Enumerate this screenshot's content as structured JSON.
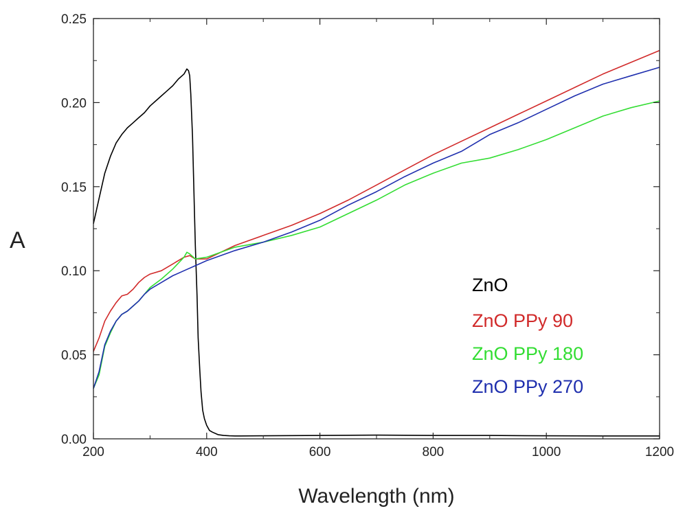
{
  "chart_data": {
    "type": "line",
    "xlabel": "Wavelength (nm)",
    "ylabel": "A",
    "xlim": [
      200,
      1200
    ],
    "ylim": [
      0,
      0.25
    ],
    "xticks": [
      200,
      400,
      600,
      800,
      1000,
      1200
    ],
    "xtick_labels": [
      "200",
      "400",
      "600",
      "800",
      "1000",
      "1200"
    ],
    "yticks": [
      0,
      0.05,
      0.1,
      0.15,
      0.2,
      0.25
    ],
    "ytick_labels": [
      "0.00",
      "0.05",
      "0.10",
      "0.15",
      "0.20",
      "0.25"
    ],
    "grid": false,
    "legend_position": "right",
    "series": [
      {
        "name": "ZnO",
        "color": "#000000",
        "x": [
          200,
          210,
          220,
          230,
          240,
          250,
          260,
          270,
          280,
          290,
          300,
          310,
          320,
          330,
          340,
          350,
          360,
          365,
          368,
          370,
          372,
          375,
          378,
          380,
          383,
          385,
          388,
          390,
          393,
          396,
          400,
          405,
          410,
          420,
          430,
          440,
          450,
          460,
          500,
          600,
          700,
          800,
          900,
          1000,
          1100,
          1200
        ],
        "y": [
          0.128,
          0.143,
          0.158,
          0.168,
          0.176,
          0.181,
          0.185,
          0.188,
          0.191,
          0.194,
          0.198,
          0.201,
          0.204,
          0.207,
          0.21,
          0.214,
          0.217,
          0.22,
          0.219,
          0.216,
          0.205,
          0.18,
          0.14,
          0.115,
          0.085,
          0.06,
          0.04,
          0.028,
          0.017,
          0.012,
          0.008,
          0.005,
          0.004,
          0.0025,
          0.002,
          0.0018,
          0.0017,
          0.0017,
          0.0018,
          0.002,
          0.0022,
          0.002,
          0.002,
          0.0018,
          0.0017,
          0.0017
        ]
      },
      {
        "name": "ZnO PPy 90",
        "color": "#d12a2a",
        "x": [
          200,
          210,
          220,
          230,
          240,
          250,
          260,
          270,
          280,
          290,
          300,
          320,
          340,
          360,
          370,
          380,
          400,
          450,
          500,
          550,
          600,
          650,
          700,
          750,
          800,
          850,
          900,
          950,
          1000,
          1050,
          1100,
          1150,
          1200
        ],
        "y": [
          0.052,
          0.06,
          0.07,
          0.076,
          0.081,
          0.085,
          0.086,
          0.089,
          0.093,
          0.096,
          0.098,
          0.1,
          0.104,
          0.108,
          0.109,
          0.107,
          0.107,
          0.115,
          0.121,
          0.127,
          0.134,
          0.142,
          0.151,
          0.16,
          0.169,
          0.177,
          0.185,
          0.193,
          0.201,
          0.209,
          0.217,
          0.224,
          0.231
        ]
      },
      {
        "name": "ZnO PPy 180",
        "color": "#33dd33",
        "x": [
          200,
          210,
          220,
          230,
          240,
          250,
          260,
          270,
          280,
          290,
          300,
          320,
          340,
          360,
          365,
          370,
          380,
          400,
          450,
          500,
          550,
          600,
          650,
          700,
          750,
          800,
          850,
          900,
          950,
          1000,
          1050,
          1100,
          1150,
          1200
        ],
        "y": [
          0.03,
          0.038,
          0.055,
          0.063,
          0.07,
          0.074,
          0.076,
          0.079,
          0.082,
          0.086,
          0.09,
          0.095,
          0.101,
          0.108,
          0.111,
          0.11,
          0.107,
          0.108,
          0.114,
          0.117,
          0.121,
          0.126,
          0.134,
          0.142,
          0.151,
          0.158,
          0.164,
          0.167,
          0.172,
          0.178,
          0.185,
          0.192,
          0.197,
          0.201
        ]
      },
      {
        "name": "ZnO PPy 270",
        "color": "#1f2fae",
        "x": [
          200,
          210,
          220,
          230,
          240,
          250,
          260,
          270,
          280,
          290,
          300,
          320,
          340,
          360,
          380,
          400,
          450,
          500,
          550,
          600,
          650,
          700,
          750,
          800,
          850,
          900,
          950,
          1000,
          1050,
          1100,
          1150,
          1200
        ],
        "y": [
          0.03,
          0.04,
          0.056,
          0.064,
          0.07,
          0.074,
          0.076,
          0.079,
          0.082,
          0.086,
          0.089,
          0.093,
          0.097,
          0.1,
          0.103,
          0.106,
          0.112,
          0.117,
          0.123,
          0.13,
          0.139,
          0.147,
          0.156,
          0.164,
          0.171,
          0.181,
          0.188,
          0.196,
          0.204,
          0.211,
          0.216,
          0.221
        ]
      }
    ]
  }
}
